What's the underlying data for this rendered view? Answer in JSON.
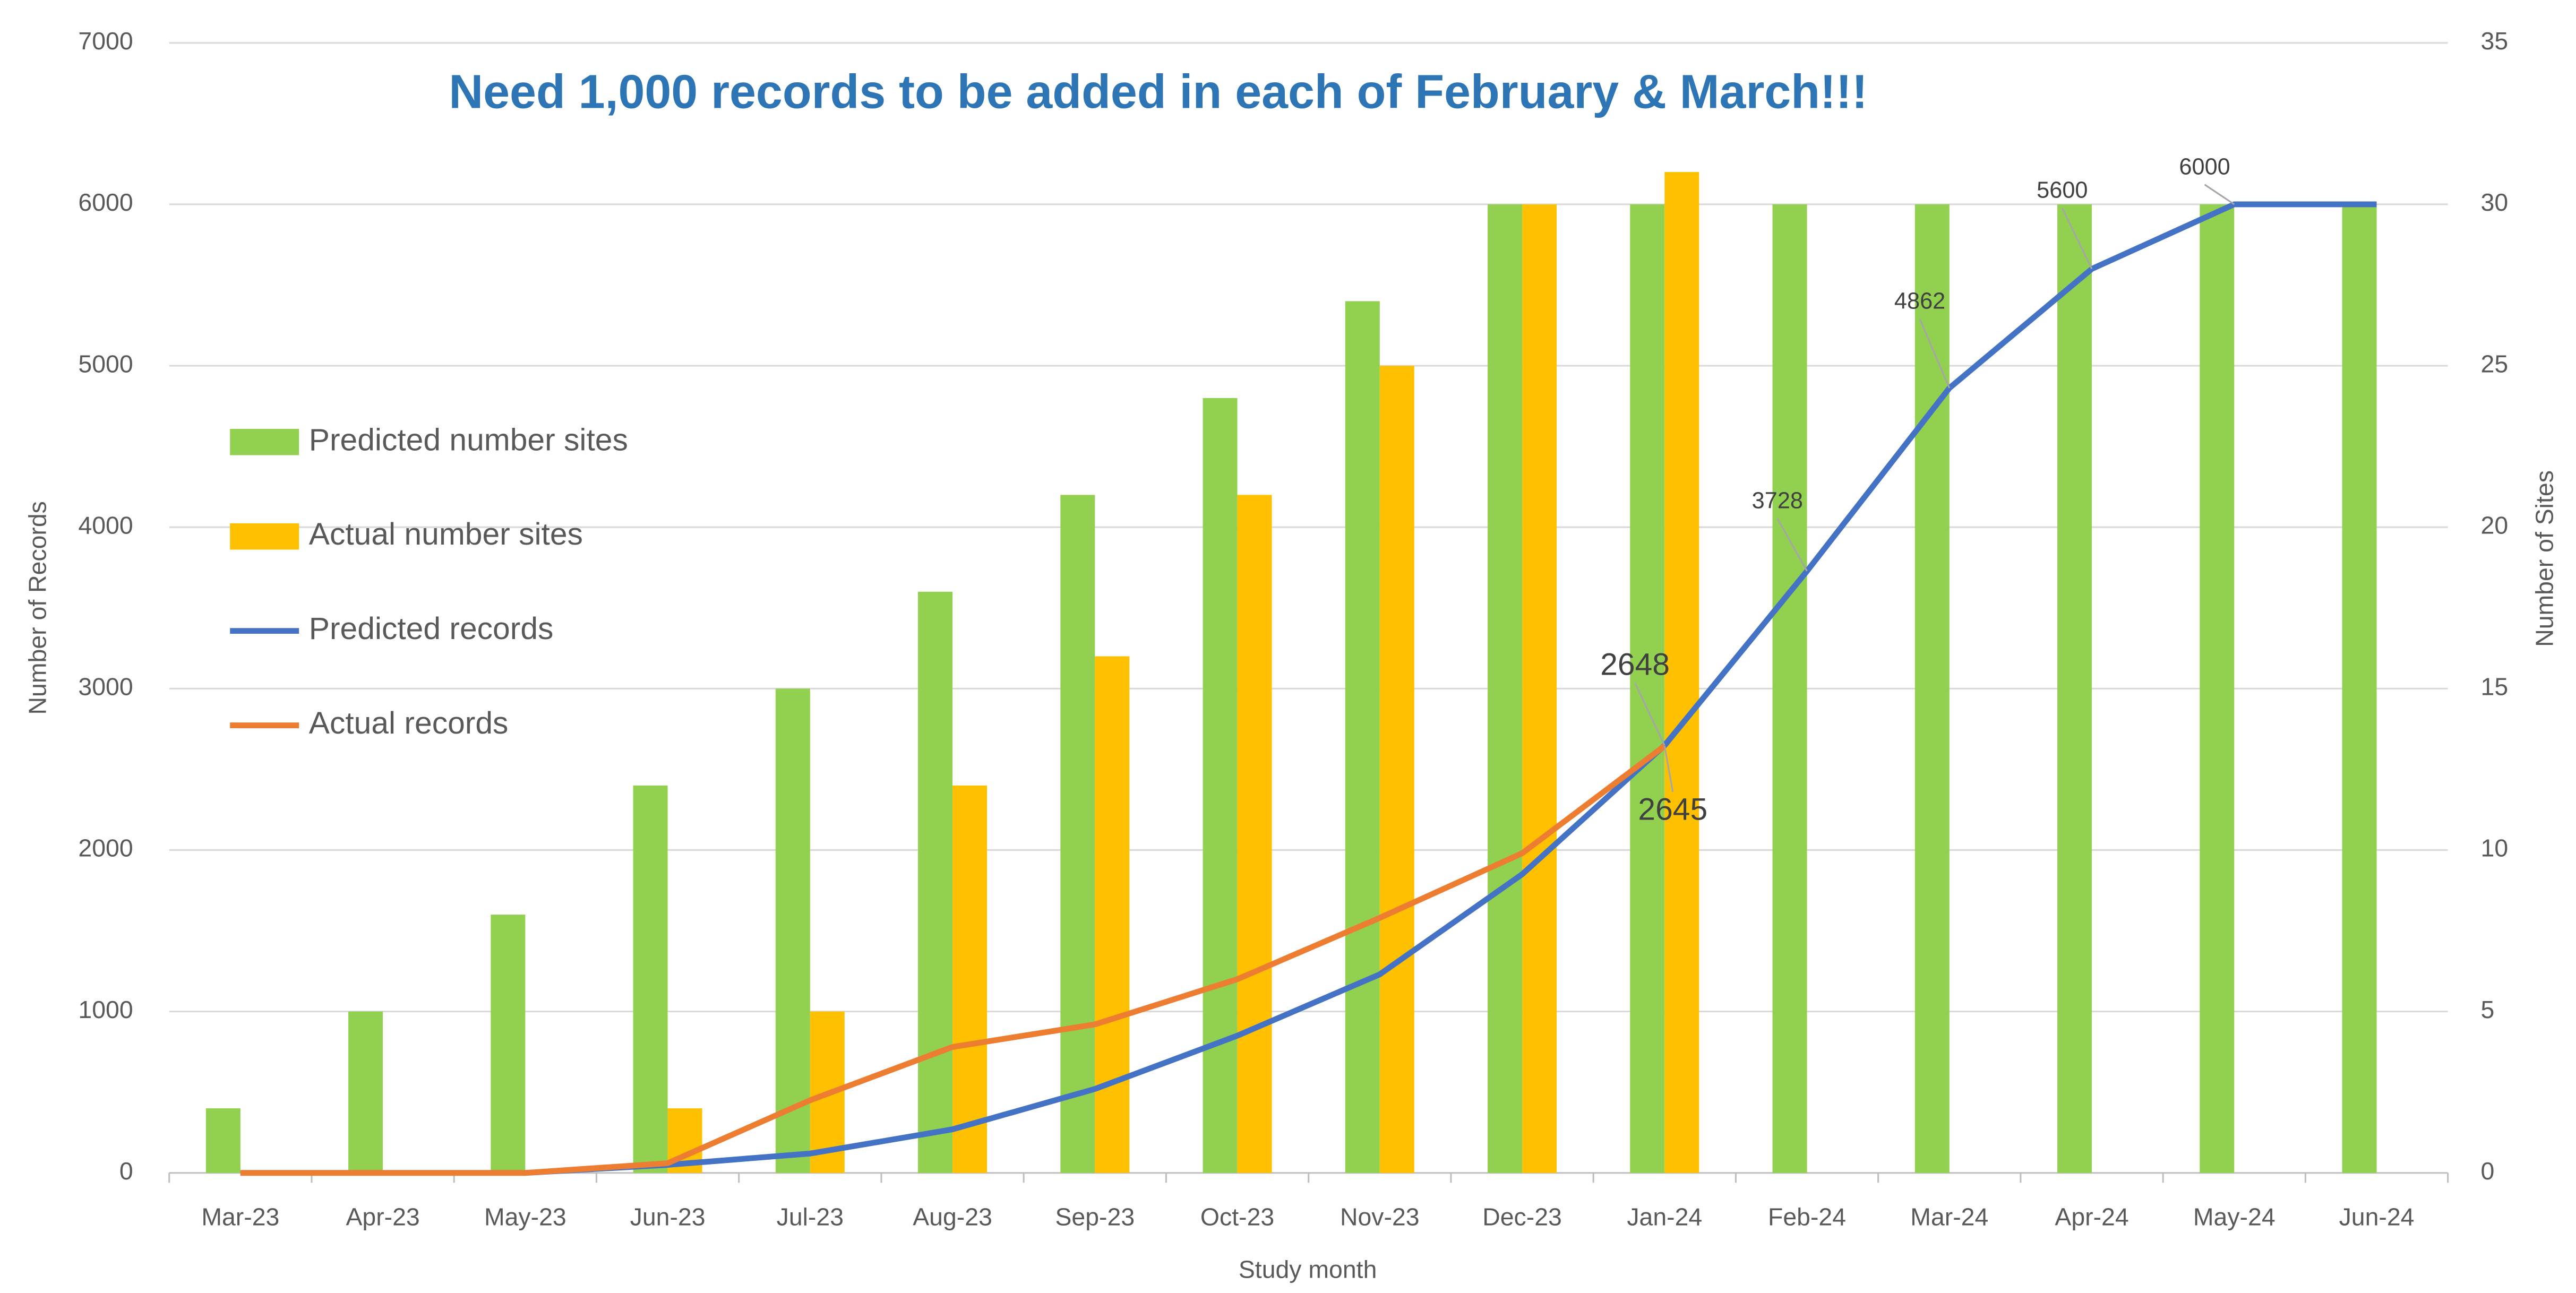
{
  "chart_data": {
    "type": "combo",
    "title": "Need 1,000 records to be added in each of February & March!!!",
    "x_label": "Study month",
    "y_label": "Number of Records",
    "y2_label": "Number of Sites",
    "categories": [
      "Mar-23",
      "Apr-23",
      "May-23",
      "Jun-23",
      "Jul-23",
      "Aug-23",
      "Sep-23",
      "Oct-23",
      "Nov-23",
      "Dec-23",
      "Jan-24",
      "Feb-24",
      "Mar-24",
      "Apr-24",
      "May-24",
      "Jun-24"
    ],
    "ylim": [
      0,
      7000
    ],
    "yticks": [
      0,
      1000,
      2000,
      3000,
      4000,
      5000,
      6000,
      7000
    ],
    "y2lim": [
      0,
      35
    ],
    "y2ticks": [
      0,
      5,
      10,
      15,
      20,
      25,
      30,
      35
    ],
    "grid": true,
    "legend": "left",
    "series": [
      {
        "name": "Predicted number sites",
        "type": "bar",
        "axis": "y2",
        "color": "#92d050",
        "values": [
          2,
          5,
          8,
          12,
          15,
          18,
          21,
          24,
          27,
          30,
          30,
          30,
          30,
          30,
          30,
          30
        ]
      },
      {
        "name": "Actual number sites",
        "type": "bar",
        "axis": "y2",
        "color": "#ffc000",
        "values": [
          0,
          0,
          0,
          2,
          5,
          12,
          16,
          21,
          25,
          30,
          31,
          null,
          null,
          null,
          null,
          null
        ]
      },
      {
        "name": "Predicted records",
        "type": "line",
        "color": "#4472c4",
        "values": [
          0,
          0,
          0,
          50,
          120,
          270,
          520,
          850,
          1230,
          1850,
          2648,
          3728,
          4862,
          5600,
          6000,
          6000
        ],
        "value_labels": [
          null,
          null,
          null,
          null,
          null,
          null,
          null,
          null,
          null,
          null,
          "2648",
          "3728",
          "4862",
          "5600",
          "6000",
          null
        ]
      },
      {
        "name": "Actual records",
        "type": "line",
        "color": "#ed7d31",
        "values": [
          0,
          0,
          0,
          60,
          450,
          780,
          920,
          1200,
          1580,
          1980,
          2645,
          null,
          null,
          null,
          null,
          null
        ],
        "value_labels": [
          null,
          null,
          null,
          null,
          null,
          null,
          null,
          null,
          null,
          null,
          "2645",
          null,
          null,
          null,
          null,
          null
        ]
      }
    ]
  }
}
